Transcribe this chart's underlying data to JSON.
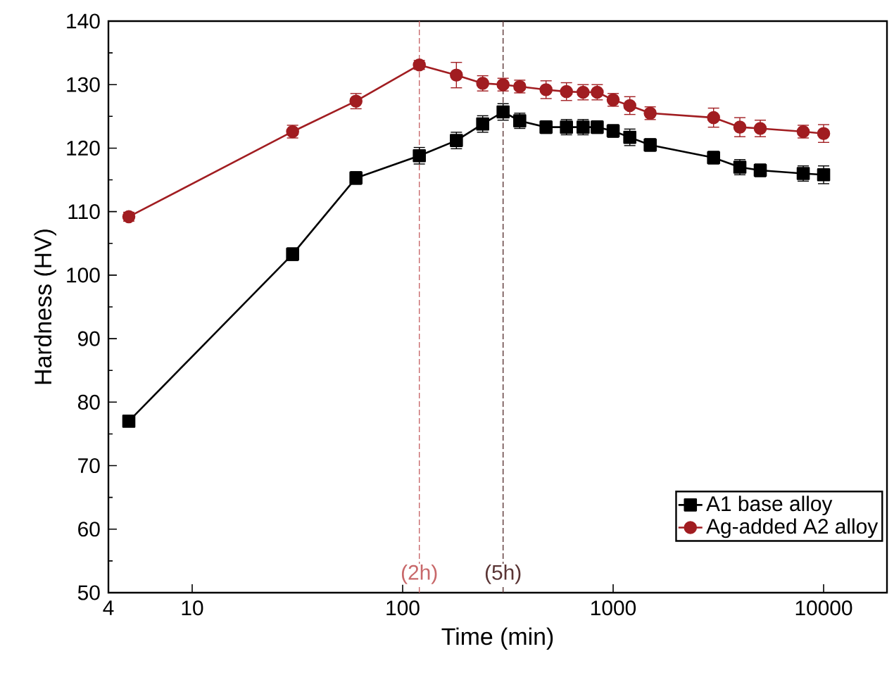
{
  "chart_data": {
    "type": "line",
    "xlabel": "Time (min)",
    "ylabel": "Hardness (HV)",
    "log": "x",
    "xlim": [
      4,
      20000
    ],
    "xticks": [
      4,
      10,
      100,
      1000,
      10000
    ],
    "ylim": [
      50,
      140
    ],
    "yticks": [
      50,
      60,
      70,
      80,
      90,
      100,
      110,
      120,
      130,
      140
    ],
    "grid": false,
    "legend": "bottom right",
    "series": [
      {
        "name": "A1 base alloy",
        "color": "#000000",
        "marker": "square",
        "x": [
          5,
          30,
          60,
          120,
          180,
          240,
          300,
          360,
          480,
          600,
          720,
          840,
          1000,
          1200,
          1500,
          3000,
          4000,
          5000,
          8000,
          10000
        ],
        "values": [
          77,
          103.3,
          115.3,
          118.8,
          121.2,
          123.8,
          125.7,
          124.3,
          123.3,
          123.3,
          123.3,
          123.3,
          122.7,
          121.7,
          120.5,
          118.5,
          117,
          116.5,
          116,
          115.8
        ],
        "errors": [
          0.5,
          1,
          1,
          1.3,
          1.3,
          1.3,
          1.3,
          1.2,
          1,
          1.2,
          1.2,
          1,
          1,
          1.3,
          1,
          1,
          1.2,
          1,
          1.2,
          1.4
        ]
      },
      {
        "name": "Ag-added A2 alloy",
        "color": "#a11d21",
        "marker": "circle",
        "x": [
          5,
          30,
          60,
          120,
          180,
          240,
          300,
          360,
          480,
          600,
          720,
          840,
          1000,
          1200,
          1500,
          3000,
          4000,
          5000,
          8000,
          10000
        ],
        "values": [
          109.2,
          122.6,
          127.4,
          133.1,
          131.5,
          130.2,
          130,
          129.7,
          129.2,
          128.9,
          128.8,
          128.8,
          127.6,
          126.7,
          125.5,
          124.8,
          123.3,
          123.1,
          122.6,
          122.3
        ],
        "errors": [
          0.7,
          1,
          1.2,
          0.7,
          2,
          1.2,
          1,
          1,
          1.4,
          1.4,
          1.2,
          1.2,
          1,
          1.4,
          1,
          1.5,
          1.5,
          1.3,
          1,
          1.4
        ]
      }
    ],
    "ref_lines": [
      {
        "axis": "x",
        "value": 120,
        "label": "(2h)",
        "color": "#c8686a",
        "line_style": "dashed"
      },
      {
        "axis": "x",
        "value": 300,
        "label": "(5h)",
        "color": "#5a3535",
        "line_style": "dashed"
      }
    ]
  }
}
